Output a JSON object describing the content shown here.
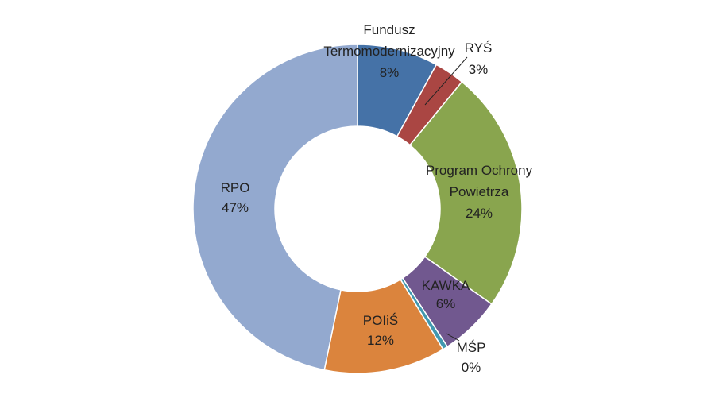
{
  "chart_data": {
    "type": "pie",
    "style": "donut",
    "title": "",
    "legend": "none",
    "slices": [
      {
        "name": "Fundusz Termomodernizacyjny",
        "value": 8,
        "label_lines": [
          "Fundusz",
          "Termomodernizacyjny",
          "8%"
        ],
        "color": "#4572A7"
      },
      {
        "name": "RYŚ",
        "value": 3,
        "label_lines": [
          "RYŚ",
          "3%"
        ],
        "color": "#AA4643"
      },
      {
        "name": "Program Ochrony Powietrza",
        "value": 24,
        "label_lines": [
          "Program Ochrony",
          "Powietrza",
          "24%"
        ],
        "color": "#89A54E"
      },
      {
        "name": "KAWKA",
        "value": 6,
        "label_lines": [
          "KAWKA",
          "6%"
        ],
        "color": "#71588F"
      },
      {
        "name": "MŚP",
        "value": 0.5,
        "label_lines": [
          "MŚP",
          "0%"
        ],
        "color": "#4198AF"
      },
      {
        "name": "POIiŚ",
        "value": 12,
        "label_lines": [
          "POIiŚ",
          "12%"
        ],
        "color": "#DB843D"
      },
      {
        "name": "RPO",
        "value": 47,
        "label_lines": [
          "RPO",
          "47%"
        ],
        "color": "#93A9CF"
      }
    ]
  }
}
